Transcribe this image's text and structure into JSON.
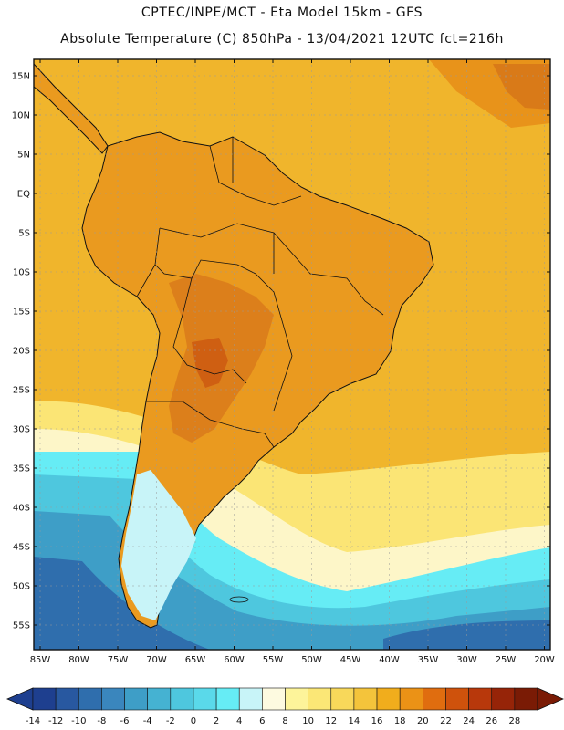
{
  "header": {
    "line1": "CPTEC/INPE/MCT -   Eta Model 15km - GFS",
    "line2": "Absolute Temperature (C) 850hPa - 13/04/2021 12UTC fct=216h"
  },
  "axes": {
    "lat_labels": [
      "15N",
      "10N",
      "5N",
      "EQ",
      "5S",
      "10S",
      "15S",
      "20S",
      "25S",
      "30S",
      "35S",
      "40S",
      "45S",
      "50S",
      "55S"
    ],
    "lon_labels": [
      "85W",
      "80W",
      "75W",
      "70W",
      "65W",
      "60W",
      "55W",
      "50W",
      "45W",
      "40W",
      "35W",
      "30W",
      "25W",
      "20W"
    ]
  },
  "colorbar": {
    "labels": [
      "-14",
      "-12",
      "-10",
      "-8",
      "-6",
      "-4",
      "-2",
      "0",
      "2",
      "4",
      "6",
      "8",
      "10",
      "12",
      "14",
      "16",
      "18",
      "20",
      "22",
      "24",
      "26",
      "28"
    ],
    "colors": [
      "#1e3f8f",
      "#2858a0",
      "#2f6ead",
      "#3a86bd",
      "#3e9ec7",
      "#45b2d2",
      "#4ec7de",
      "#5ad9ea",
      "#66ecf5",
      "#c8f4f8",
      "#fdfae0",
      "#fdf49a",
      "#fbe776",
      "#f8d85a",
      "#f4c43b",
      "#f1ad1c",
      "#eb9216",
      "#e06d0f",
      "#cf520c",
      "#b8380b",
      "#962408",
      "#7a1b05"
    ]
  },
  "map": {
    "ocean_color": "#f0b52c",
    "land_color": "#ea9a1f",
    "hot_color": "#d97a18"
  }
}
